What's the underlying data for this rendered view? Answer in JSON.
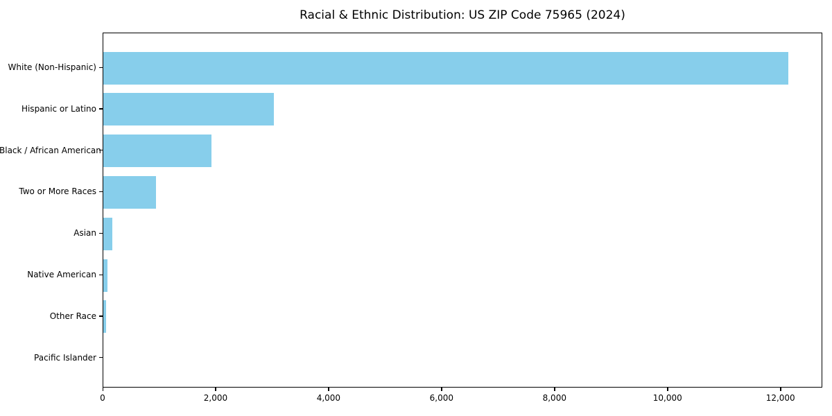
{
  "title": "Racial & Ethnic Distribution: US ZIP Code 75965 (2024)",
  "chart_data": {
    "type": "bar",
    "orientation": "horizontal",
    "title": "Racial & Ethnic Distribution: US ZIP Code 75965 (2024)",
    "categories": [
      "White (Non-Hispanic)",
      "Hispanic or Latino",
      "Black / African American",
      "Two or More Races",
      "Asian",
      "Native American",
      "Other Race",
      "Pacific Islander"
    ],
    "values": [
      12130,
      3020,
      1910,
      930,
      160,
      70,
      55,
      0
    ],
    "xlabel": "",
    "ylabel": "",
    "xlim": [
      0,
      12740
    ],
    "x_ticks": [
      0,
      2000,
      4000,
      6000,
      8000,
      10000,
      12000
    ],
    "x_tick_labels": [
      "0",
      "2,000",
      "4,000",
      "6,000",
      "8,000",
      "10,000",
      "12,000"
    ],
    "grid": false,
    "legend": null,
    "bar_color": "#87CEEB"
  },
  "colors": {
    "bar": "#87CEEB",
    "axis": "#000000",
    "text": "#000000",
    "background": "#ffffff"
  }
}
